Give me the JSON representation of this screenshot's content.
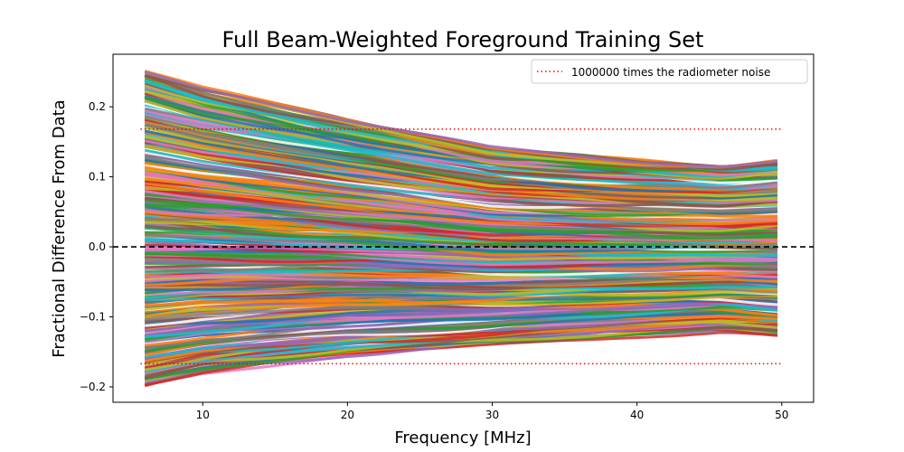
{
  "chart_data": {
    "type": "line",
    "title": "Full Beam-Weighted Foreground Training Set",
    "xlabel": "Frequency [MHz]",
    "ylabel": "Fractional Difference From Data",
    "xlim": [
      3.8,
      52.2
    ],
    "ylim": [
      -0.222,
      0.275
    ],
    "x_ticks": [
      10,
      20,
      30,
      40,
      50
    ],
    "x_tick_labels": [
      "10",
      "20",
      "30",
      "40",
      "50"
    ],
    "y_ticks": [
      -0.2,
      -0.1,
      0.0,
      0.1,
      0.2
    ],
    "y_tick_labels": [
      "−0.2",
      "−0.1",
      "0.0",
      "0.1",
      "0.2"
    ],
    "x_range": [
      6,
      49.7
    ],
    "grid": false,
    "legend": {
      "position": "top-right",
      "entries": [
        {
          "label": "1000000 times the radiometer noise",
          "style": "dotted",
          "color": "#ff0000"
        }
      ]
    },
    "reference_lines": [
      {
        "name": "zero",
        "y": 0.0,
        "style": "dashed",
        "color": "#000000"
      },
      {
        "name": "noise-upper",
        "y": 0.168,
        "style": "dotted",
        "color": "#ff0000"
      },
      {
        "name": "noise-lower",
        "y": -0.167,
        "style": "dotted",
        "color": "#ff0000"
      }
    ],
    "series_colors": [
      "#1f77b4",
      "#ff7f0e",
      "#2ca02c",
      "#d62728",
      "#9467bd",
      "#8c564b",
      "#e377c2",
      "#7f7f7f",
      "#bcbd22",
      "#17becf"
    ],
    "envelope": {
      "description_x": [
        6,
        10,
        20,
        30,
        40,
        46,
        49.7
      ],
      "upper": [
        0.25,
        0.225,
        0.18,
        0.14,
        0.123,
        0.115,
        0.122
      ],
      "lower": [
        -0.197,
        -0.18,
        -0.155,
        -0.14,
        -0.125,
        -0.118,
        -0.125
      ]
    },
    "series_count": 400
  }
}
